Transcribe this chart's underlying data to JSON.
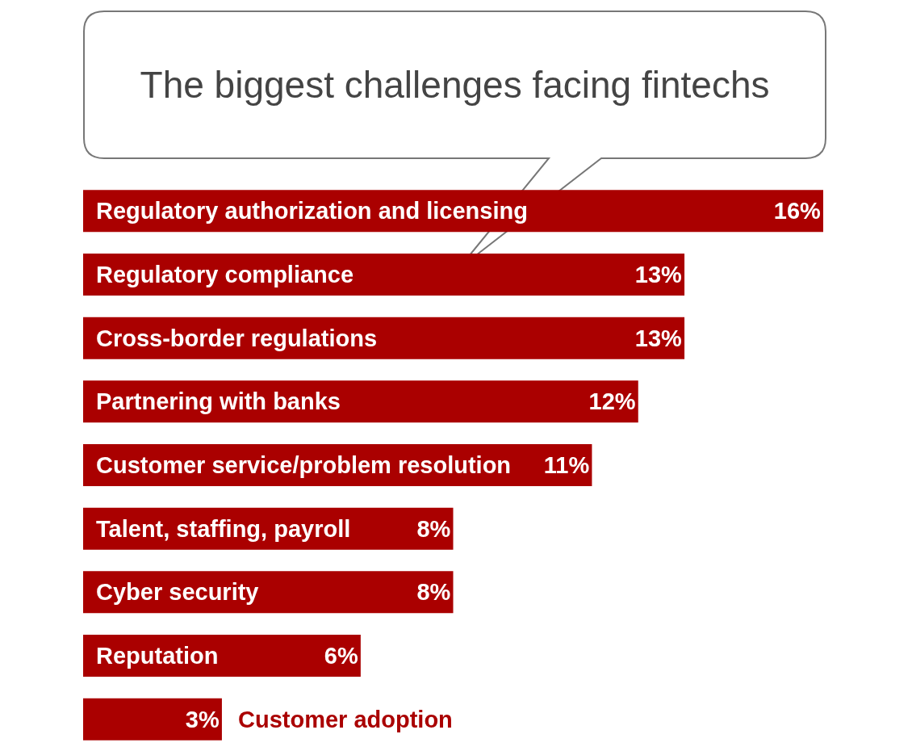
{
  "chart_data": {
    "type": "bar",
    "orientation": "horizontal",
    "title": "The biggest challenges facing fintechs",
    "categories": [
      "Regulatory authorization and licensing",
      "Regulatory compliance",
      "Cross-border regulations",
      "Partnering with banks",
      "Customer service/problem resolution",
      "Talent, staffing, payroll",
      "Cyber security",
      "Reputation",
      "Customer adoption"
    ],
    "values": [
      16,
      13,
      13,
      12,
      11,
      8,
      8,
      6,
      3
    ],
    "value_labels": [
      "16%",
      "13%",
      "13%",
      "12%",
      "11%",
      "8%",
      "8%",
      "6%",
      "3%"
    ],
    "color": "#aa0000"
  }
}
